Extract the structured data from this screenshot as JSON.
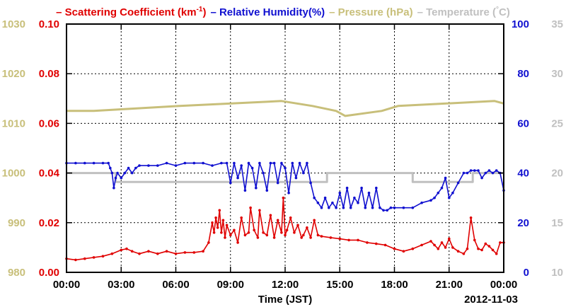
{
  "chart_data": {
    "type": "line",
    "title_parts": [
      {
        "text": "– Scattering Coefficient (km",
        "sup": "-1",
        "after": ")",
        "color": "#e00000"
      },
      {
        "text": "– Relative Humidity(%)",
        "color": "#1010d0"
      },
      {
        "text": "– Pressure (hPa)",
        "color": "#c8bf7a"
      },
      {
        "text": "– Temperature (",
        "sup": "°",
        "after": "C)",
        "color": "#c0c0c0"
      }
    ],
    "xlabel": "Time (JST)",
    "date_label": "2012-11-03",
    "x_range": [
      0,
      24
    ],
    "x_ticks": [
      {
        "v": 0,
        "label": "00:00"
      },
      {
        "v": 3,
        "label": "03:00"
      },
      {
        "v": 6,
        "label": "06:00"
      },
      {
        "v": 9,
        "label": "09:00"
      },
      {
        "v": 12,
        "label": "12:00"
      },
      {
        "v": 15,
        "label": "15:00"
      },
      {
        "v": 18,
        "label": "18:00"
      },
      {
        "v": 21,
        "label": "21:00"
      },
      {
        "v": 24,
        "label": "00:00"
      }
    ],
    "axes": {
      "pressure": {
        "range": [
          980,
          1030
        ],
        "ticks": [
          "980",
          "990",
          "1000",
          "1010",
          "1020",
          "1030"
        ],
        "color": "#c8bf7a"
      },
      "scattering": {
        "range": [
          0,
          0.1
        ],
        "ticks": [
          "0.00",
          "0.02",
          "0.04",
          "0.06",
          "0.08",
          "0.10"
        ],
        "color": "#e00000"
      },
      "humidity": {
        "range": [
          0,
          100
        ],
        "ticks": [
          "0",
          "20",
          "40",
          "60",
          "80",
          "100"
        ],
        "color": "#1010d0"
      },
      "temperature": {
        "range": [
          10,
          35
        ],
        "ticks": [
          "10",
          "15",
          "20",
          "25",
          "30",
          "35"
        ],
        "color": "#c0c0c0"
      }
    },
    "grid": true,
    "series": [
      {
        "name": "Pressure (hPa)",
        "axis": "pressure",
        "color": "#c8bf7a",
        "step": true,
        "x": [
          0,
          1.5,
          1.5,
          6.2,
          6.2,
          11.8,
          11.8,
          13.5,
          13.5,
          14.8,
          14.8,
          15.3,
          15.3,
          17.3,
          17.3,
          18.2,
          18.2,
          23.5,
          23.5,
          24
        ],
        "y": [
          1012.5,
          1012.5,
          1012.5,
          1013.5,
          1013.5,
          1014.5,
          1014.5,
          1013.5,
          1013.5,
          1012.5,
          1012.5,
          1011.5,
          1011.5,
          1012.5,
          1012.5,
          1013.5,
          1013.5,
          1014.5,
          1014.5,
          1014.0
        ]
      },
      {
        "name": "Temperature (C)",
        "axis": "temperature",
        "color": "#c0c0c0",
        "step": true,
        "x": [
          0,
          2.7,
          2.7,
          14.3,
          14.3,
          19.0,
          19.0,
          22.3,
          22.3,
          24
        ],
        "y": [
          20.0,
          20.0,
          19.1,
          19.1,
          20.0,
          20.0,
          19.1,
          19.1,
          20.0,
          20.0
        ]
      },
      {
        "name": "Relative Humidity(%)",
        "axis": "humidity",
        "color": "#1010d0",
        "step": false,
        "x": [
          0,
          0.5,
          1,
          1.5,
          2,
          2.3,
          2.4,
          2.5,
          2.6,
          2.7,
          2.8,
          3.0,
          3.2,
          3.4,
          3.6,
          3.8,
          4.0,
          4.5,
          5.0,
          5.5,
          6.0,
          6.5,
          7.0,
          7.5,
          8.0,
          8.5,
          8.8,
          9.0,
          9.2,
          9.4,
          9.6,
          9.8,
          10.0,
          10.2,
          10.4,
          10.6,
          10.8,
          11.0,
          11.2,
          11.4,
          11.6,
          11.8,
          12.0,
          12.2,
          12.4,
          12.6,
          12.8,
          13.0,
          13.2,
          13.4,
          13.6,
          13.8,
          14.0,
          14.2,
          14.4,
          14.6,
          14.8,
          15.0,
          15.2,
          15.4,
          15.6,
          15.8,
          16.0,
          16.2,
          16.4,
          16.6,
          16.8,
          17.0,
          17.2,
          17.4,
          17.6,
          17.8,
          18.0,
          18.5,
          19.0,
          19.5,
          20.0,
          20.2,
          20.4,
          20.6,
          20.8,
          21.0,
          21.2,
          21.5,
          21.8,
          22.0,
          22.2,
          22.4,
          22.6,
          22.8,
          23.0,
          23.2,
          23.4,
          23.6,
          23.8,
          24.0
        ],
        "y": [
          44,
          44,
          44,
          44,
          44,
          44,
          42,
          40,
          34,
          38,
          40,
          38,
          40,
          42,
          40,
          42,
          43,
          43,
          43,
          44,
          43,
          44,
          44,
          44,
          43,
          44,
          44,
          36,
          44,
          38,
          43,
          33,
          44,
          42,
          34,
          44,
          40,
          33,
          44,
          44,
          36,
          44,
          42,
          32,
          44,
          38,
          44,
          40,
          44,
          36,
          30,
          28,
          26,
          30,
          26,
          28,
          26,
          32,
          26,
          34,
          26,
          30,
          28,
          34,
          26,
          32,
          26,
          34,
          26,
          25,
          25,
          26,
          26,
          26,
          26,
          28,
          29,
          30,
          32,
          34,
          38,
          30,
          32,
          36,
          40,
          40,
          41,
          41,
          41,
          38,
          40,
          41,
          40,
          41,
          40,
          33
        ]
      },
      {
        "name": "Scattering Coefficient (km-1)",
        "axis": "scattering",
        "color": "#e00000",
        "step": false,
        "x": [
          0,
          0.5,
          1,
          1.5,
          2,
          2.5,
          3.0,
          3.3,
          3.6,
          4.0,
          4.5,
          5.0,
          5.5,
          6.0,
          6.5,
          7.0,
          7.5,
          7.8,
          8.0,
          8.1,
          8.2,
          8.3,
          8.4,
          8.5,
          8.6,
          8.7,
          8.8,
          9.0,
          9.2,
          9.4,
          9.6,
          9.8,
          10.0,
          10.1,
          10.3,
          10.5,
          10.6,
          10.8,
          11.0,
          11.2,
          11.4,
          11.6,
          11.8,
          11.9,
          12.0,
          12.1,
          12.3,
          12.5,
          12.7,
          12.9,
          13.0,
          13.2,
          13.4,
          13.6,
          13.8,
          14.0,
          14.5,
          15.0,
          15.5,
          16.0,
          16.5,
          17.0,
          17.5,
          18.0,
          18.5,
          19.0,
          19.5,
          20.0,
          20.2,
          20.4,
          20.6,
          20.8,
          21.0,
          21.2,
          21.5,
          21.8,
          22.0,
          22.2,
          22.4,
          22.6,
          22.8,
          23.0,
          23.2,
          23.4,
          23.6,
          23.8,
          24.0
        ],
        "y": [
          0.0055,
          0.005,
          0.0055,
          0.006,
          0.0065,
          0.0075,
          0.009,
          0.0095,
          0.0085,
          0.0075,
          0.0085,
          0.0075,
          0.0085,
          0.0075,
          0.008,
          0.008,
          0.0085,
          0.012,
          0.02,
          0.016,
          0.022,
          0.018,
          0.025,
          0.016,
          0.021,
          0.014,
          0.019,
          0.015,
          0.017,
          0.012,
          0.022,
          0.015,
          0.016,
          0.026,
          0.017,
          0.014,
          0.025,
          0.016,
          0.015,
          0.023,
          0.014,
          0.021,
          0.016,
          0.03,
          0.015,
          0.017,
          0.022,
          0.016,
          0.019,
          0.014,
          0.015,
          0.018,
          0.014,
          0.021,
          0.015,
          0.0145,
          0.014,
          0.0135,
          0.013,
          0.013,
          0.012,
          0.0115,
          0.011,
          0.0095,
          0.0085,
          0.0095,
          0.011,
          0.0125,
          0.011,
          0.0095,
          0.012,
          0.01,
          0.0135,
          0.01,
          0.0085,
          0.0075,
          0.0095,
          0.022,
          0.013,
          0.0095,
          0.009,
          0.0115,
          0.0105,
          0.009,
          0.0075,
          0.012,
          0.012
        ]
      }
    ]
  }
}
